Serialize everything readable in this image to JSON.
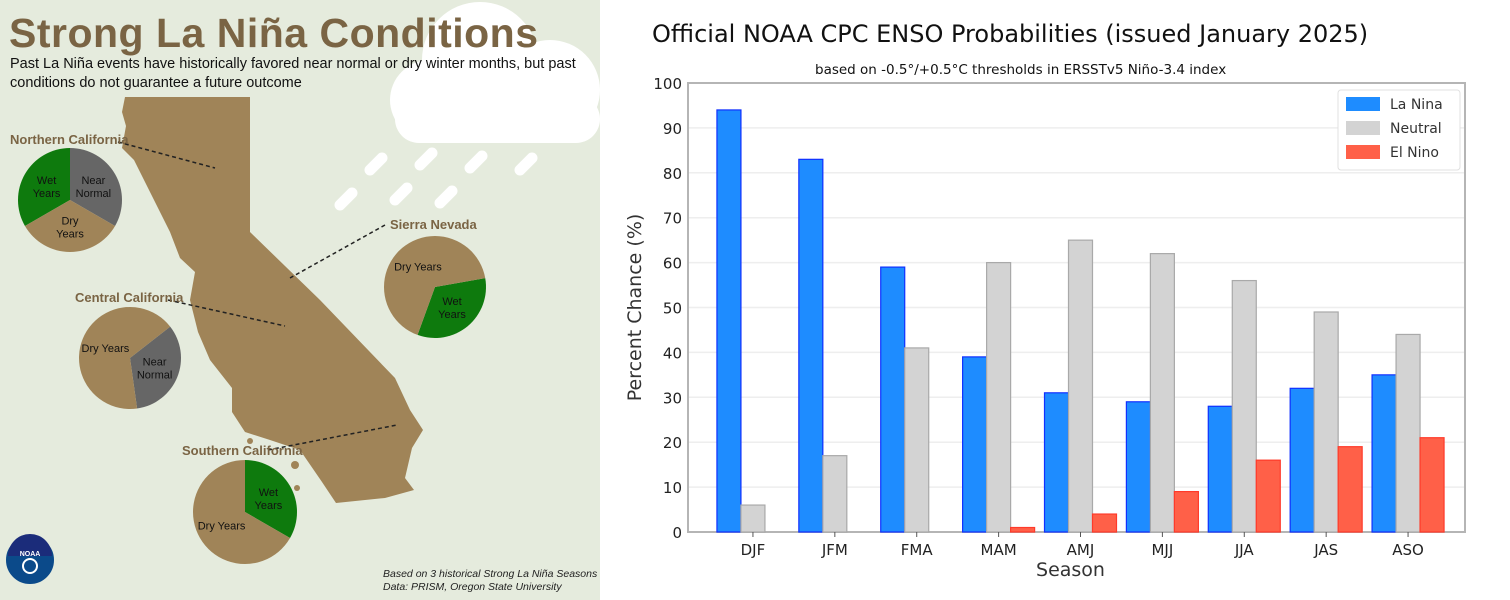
{
  "infographic": {
    "title": "Strong La Niña Conditions",
    "subtitle": "Past La Niña events have historically favored near normal or dry winter months, but past conditions do not guarantee a future outcome",
    "regions": [
      {
        "name": "Northern California",
        "slices": [
          {
            "label": "Wet Years",
            "fraction": 0.3333,
            "color": "#0e7a0d"
          },
          {
            "label": "Near Normal",
            "fraction": 0.3333,
            "color": "#666666"
          },
          {
            "label": "Dry Years",
            "fraction": 0.3333,
            "color": "#a08458"
          }
        ]
      },
      {
        "name": "Central California",
        "slices": [
          {
            "label": "Near Normal",
            "fraction": 0.3333,
            "color": "#666666"
          },
          {
            "label": "Dry Years",
            "fraction": 0.6667,
            "color": "#a08458"
          }
        ]
      },
      {
        "name": "Sierra Nevada",
        "slices": [
          {
            "label": "Wet Years",
            "fraction": 0.3333,
            "color": "#0e7a0d"
          },
          {
            "label": "Dry Years",
            "fraction": 0.6667,
            "color": "#a08458"
          }
        ]
      },
      {
        "name": "Southern California",
        "slices": [
          {
            "label": "Wet Years",
            "fraction": 0.3333,
            "color": "#0e7a0d"
          },
          {
            "label": "Dry Years",
            "fraction": 0.6667,
            "color": "#a08458"
          }
        ]
      }
    ],
    "footnote_1": "Based on 3 historical Strong La Niña Seasons",
    "footnote_2": "Data: PRISM, Oregon State University",
    "logo_text": "NOAA"
  },
  "chart_data": {
    "type": "bar",
    "title": "Official NOAA CPC ENSO Probabilities (issued January 2025)",
    "subtitle": "based on -0.5°/+0.5°C thresholds in ERSSTv5 Niño-3.4 index",
    "xlabel": "Season",
    "ylabel": "Percent Chance (%)",
    "ylim": [
      0,
      100
    ],
    "yticks": [
      0,
      10,
      20,
      30,
      40,
      50,
      60,
      70,
      80,
      90,
      100
    ],
    "grid": true,
    "legend_position": "top-right",
    "categories": [
      "DJF",
      "JFM",
      "FMA",
      "MAM",
      "AMJ",
      "MJJ",
      "JJA",
      "JAS",
      "ASO"
    ],
    "series": [
      {
        "name": "La Nina",
        "color": "#1e8cff",
        "values": [
          94,
          83,
          59,
          39,
          31,
          29,
          28,
          32,
          35
        ]
      },
      {
        "name": "Neutral",
        "color": "#d3d3d3",
        "values": [
          6,
          17,
          41,
          60,
          65,
          62,
          56,
          49,
          44
        ]
      },
      {
        "name": "El Nino",
        "color": "#ff6048",
        "values": [
          0,
          0,
          0,
          1,
          4,
          9,
          16,
          19,
          21
        ]
      }
    ]
  }
}
